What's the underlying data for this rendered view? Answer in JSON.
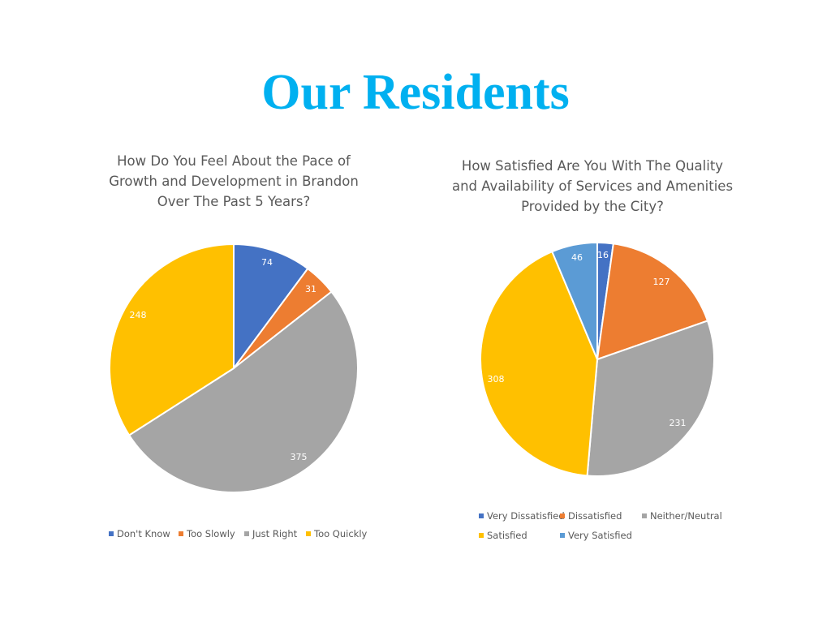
{
  "page": {
    "title": "Our Residents",
    "title_color": "#00B0F0"
  },
  "chart_data": [
    {
      "type": "pie",
      "title": "How Do You Feel About the Pace of Growth and Development in Brandon Over The Past 5 Years?",
      "title_lines": [
        "How Do You Feel About the Pace of",
        "Growth and Development in Brandon",
        "Over The Past 5 Years?"
      ],
      "categories": [
        "Don't Know",
        "Too Slowly",
        "Just Right",
        "Too Quickly"
      ],
      "values": [
        74,
        31,
        375,
        248
      ],
      "colors": [
        "#4472C4",
        "#ED7D31",
        "#A5A5A5",
        "#FFC000"
      ],
      "data_labels": [
        "74",
        "31",
        "375",
        "248"
      ],
      "legend_position": "bottom"
    },
    {
      "type": "pie",
      "title": "How Satisfied Are You With The Quality and Availability of Services and Amenities Provided by the City?",
      "title_lines": [
        "How Satisfied Are You With The Quality",
        "and Availability of Services and Amenities",
        "Provided by the City?"
      ],
      "categories": [
        "Very Dissatisfied",
        "Dissatisfied",
        "Neither/Neutral",
        "Satisfied",
        "Very Satisfied"
      ],
      "values": [
        16,
        127,
        231,
        308,
        46
      ],
      "colors": [
        "#4472C4",
        "#ED7D31",
        "#A5A5A5",
        "#FFC000",
        "#5B9BD5"
      ],
      "data_labels": [
        "16",
        "127",
        "231",
        "308",
        "46"
      ],
      "legend_position": "bottom"
    }
  ]
}
